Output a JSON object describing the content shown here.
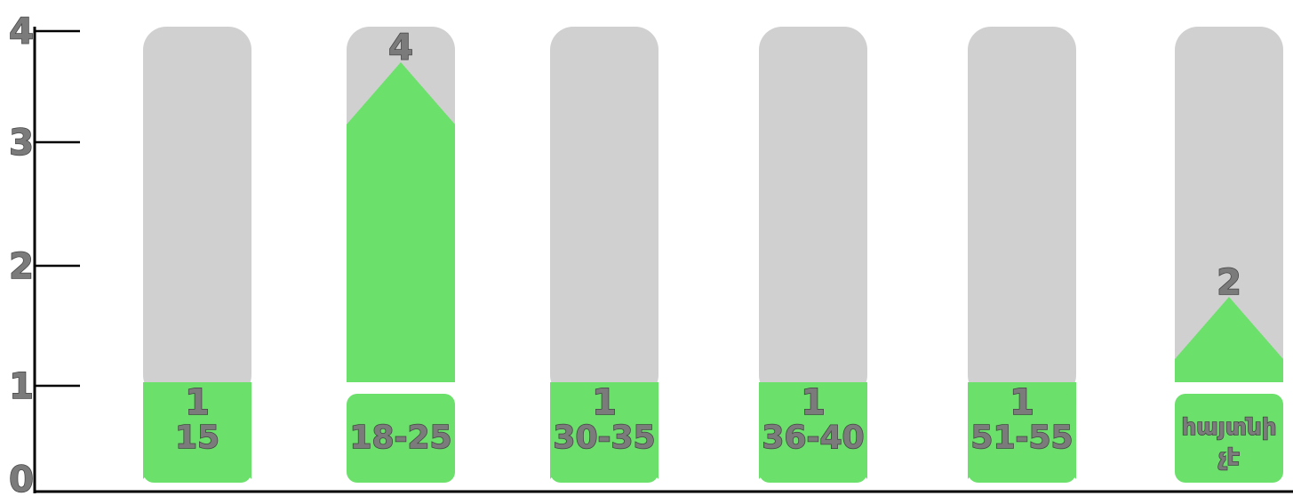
{
  "chart_data": {
    "type": "bar",
    "categories": [
      "15",
      "18-25",
      "30-35",
      "36-40",
      "51-55",
      "հայտնի չէ"
    ],
    "values": [
      1,
      4,
      1,
      1,
      1,
      2
    ],
    "y_ticks": [
      "0",
      "1",
      "2",
      "3",
      "4"
    ],
    "ylim": [
      0,
      4
    ],
    "title": "",
    "xlabel": "",
    "ylabel": "",
    "grid": false,
    "legend": "none",
    "colors": {
      "fill": "#6be06b",
      "track": "#d0d0d0",
      "axis": "#000000",
      "label_fill": "#7b7b7b",
      "label_stroke": "#444444"
    }
  }
}
